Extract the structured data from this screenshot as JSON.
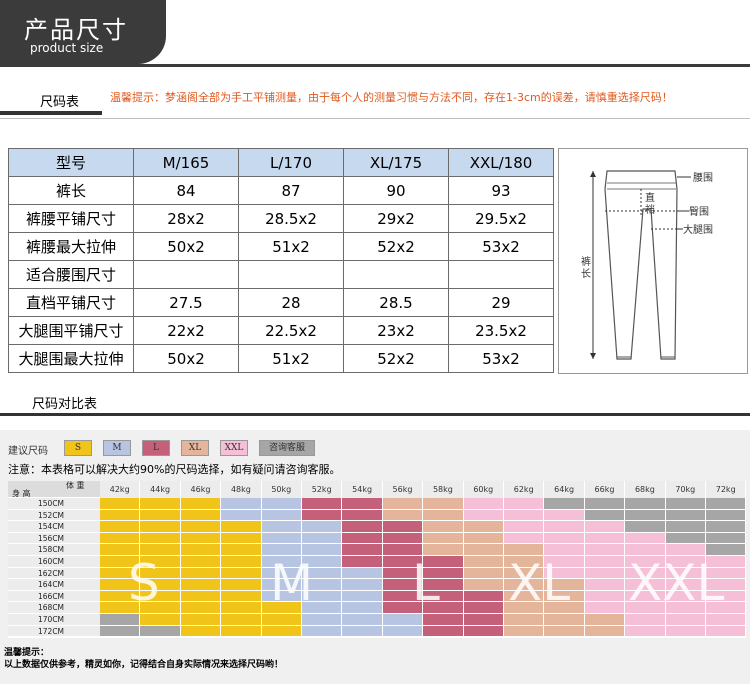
{
  "header": {
    "title": "产品尺寸",
    "subtitle": "product size"
  },
  "size_table": {
    "heading": "尺码表",
    "warning": "温馨提示：梦涵阁全部为手工平铺测量，由于每个人的测量习惯与方法不同，存在1-3cm的误差，请慎重选择尺码！",
    "columns": [
      "型号",
      "M/165",
      "L/170",
      "XL/175",
      "XXL/180"
    ],
    "rows": [
      [
        "裤长",
        "84",
        "87",
        "90",
        "93"
      ],
      [
        "裤腰平铺尺寸",
        "28x2",
        "28.5x2",
        "29x2",
        "29.5x2"
      ],
      [
        "裤腰最大拉伸",
        "50x2",
        "51x2",
        "52x2",
        "53x2"
      ],
      [
        "适合腰围尺寸",
        "",
        "",
        "",
        ""
      ],
      [
        "直档平铺尺寸",
        "27.5",
        "28",
        "28.5",
        "29"
      ],
      [
        "大腿围平铺尺寸",
        "22x2",
        "22.5x2",
        "23x2",
        "23.5x2"
      ],
      [
        "大腿围最大拉伸",
        "50x2",
        "51x2",
        "52x2",
        "53x2"
      ]
    ]
  },
  "diagram": {
    "waist": "腰围",
    "crotch_1": "直",
    "crotch_2": "裆",
    "hip": "臀围",
    "thigh": "大腿围",
    "length_1": "裤",
    "length_2": "长"
  },
  "compare": {
    "heading": "尺码对比表",
    "legend_label": "建议尺码",
    "legend": [
      {
        "label": "S",
        "color": "#f0c419"
      },
      {
        "label": "M",
        "color": "#b7c5e2"
      },
      {
        "label": "L",
        "color": "#c4607a"
      },
      {
        "label": "XL",
        "color": "#e4b59a"
      },
      {
        "label": "XXL",
        "color": "#f5bfd8"
      },
      {
        "label": "咨询客服",
        "color": "#a6a6a6"
      }
    ],
    "note": "注意：本表格可以解决大约90%的尺码选择，如有疑问请咨询客服。",
    "corner_weight": "体 重",
    "corner_height": "身 高",
    "weights": [
      "42kg",
      "44kg",
      "46kg",
      "48kg",
      "50kg",
      "52kg",
      "54kg",
      "56kg",
      "58kg",
      "60kg",
      "62kg",
      "64kg",
      "66kg",
      "68kg",
      "70kg",
      "72kg"
    ],
    "heights": [
      "150CM",
      "152CM",
      "154CM",
      "156CM",
      "158CM",
      "160CM",
      "162CM",
      "164CM",
      "166CM",
      "168CM",
      "170CM",
      "172CM"
    ],
    "grid": [
      [
        "S",
        "S",
        "S",
        "M",
        "M",
        "L",
        "L",
        "XL",
        "XL",
        "XXL",
        "XXL",
        "G",
        "G",
        "G",
        "G",
        "G"
      ],
      [
        "S",
        "S",
        "S",
        "M",
        "M",
        "L",
        "L",
        "XL",
        "XL",
        "XXL",
        "XXL",
        "XXL",
        "G",
        "G",
        "G",
        "G"
      ],
      [
        "S",
        "S",
        "S",
        "S",
        "M",
        "M",
        "L",
        "L",
        "XL",
        "XL",
        "XXL",
        "XXL",
        "XXL",
        "G",
        "G",
        "G"
      ],
      [
        "S",
        "S",
        "S",
        "S",
        "M",
        "M",
        "L",
        "L",
        "XL",
        "XL",
        "XXL",
        "XXL",
        "XXL",
        "XXL",
        "G",
        "G"
      ],
      [
        "S",
        "S",
        "S",
        "S",
        "M",
        "M",
        "L",
        "L",
        "XL",
        "XL",
        "XL",
        "XXL",
        "XXL",
        "XXL",
        "XXL",
        "G"
      ],
      [
        "S",
        "S",
        "S",
        "S",
        "M",
        "M",
        "L",
        "L",
        "L",
        "XL",
        "XL",
        "XXL",
        "XXL",
        "XXL",
        "XXL",
        "XXL"
      ],
      [
        "S",
        "S",
        "S",
        "S",
        "M",
        "M",
        "M",
        "L",
        "L",
        "XL",
        "XL",
        "XXL",
        "XXL",
        "XXL",
        "XXL",
        "XXL"
      ],
      [
        "S",
        "S",
        "S",
        "S",
        "M",
        "M",
        "M",
        "L",
        "L",
        "XL",
        "XL",
        "XL",
        "XXL",
        "XXL",
        "XXL",
        "XXL"
      ],
      [
        "S",
        "S",
        "S",
        "S",
        "M",
        "M",
        "M",
        "L",
        "L",
        "L",
        "XL",
        "XL",
        "XXL",
        "XXL",
        "XXL",
        "XXL"
      ],
      [
        "S",
        "S",
        "S",
        "S",
        "S",
        "M",
        "M",
        "L",
        "L",
        "L",
        "XL",
        "XL",
        "XXL",
        "XXL",
        "XXL",
        "XXL"
      ],
      [
        "G",
        "S",
        "S",
        "S",
        "S",
        "M",
        "M",
        "M",
        "L",
        "L",
        "XL",
        "XL",
        "XL",
        "XXL",
        "XXL",
        "XXL"
      ],
      [
        "G",
        "G",
        "S",
        "S",
        "S",
        "M",
        "M",
        "M",
        "L",
        "L",
        "XL",
        "XL",
        "XL",
        "XXL",
        "XXL",
        "XXL"
      ]
    ],
    "overlay": [
      "S",
      "M",
      "L",
      "XL",
      "XXL"
    ],
    "tip_title": "温馨提示：",
    "tip_text": "以上数据仅供参考，精灵如你，记得结合自身实际情况来选择尺码哟！"
  }
}
